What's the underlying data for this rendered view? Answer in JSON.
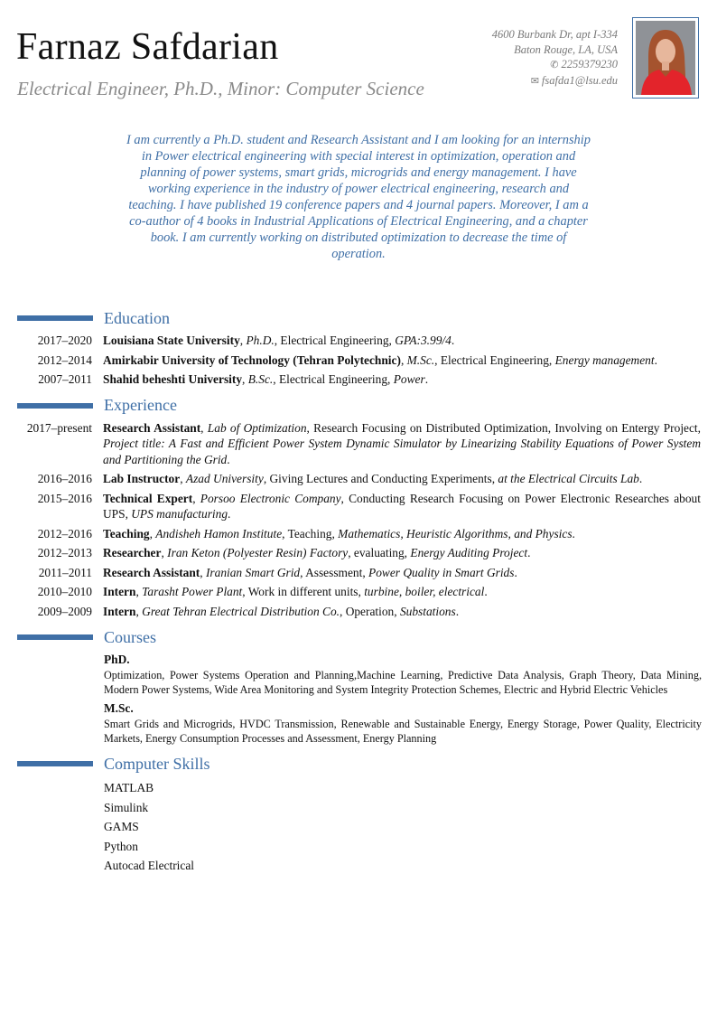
{
  "header": {
    "name": "Farnaz Safdarian",
    "subtitle": "Electrical Engineer, Ph.D., Minor: Computer Science",
    "address_line1": "4600 Burbank Dr, apt I-334",
    "address_line2": "Baton Rouge, LA, USA",
    "phone": "2259379230",
    "phone_icon": "mobile-phone-icon",
    "email": "fsafda1@lsu.edu",
    "email_icon": "envelope-icon"
  },
  "colors": {
    "accent": "#3f6fa6",
    "muted": "#8a8a8a"
  },
  "summary": "I am currently a Ph.D. student and Research Assistant and I am looking for an internship in Power electrical engineering with special interest in optimization, operation and planning of power systems, smart grids, microgrids and energy management. I have working experience in the industry of power electrical engineering, research and teaching. I have published 19 conference papers and 4 journal papers. Moreover, I am a co-author of 4 books in Industrial Applications of Electrical Engineering, and a chapter book. I am currently working on distributed optimization to decrease the time of operation.",
  "education": {
    "title": "Education",
    "entries": [
      {
        "date": "2017–2020",
        "parts": [
          {
            "t": "Louisiana State University",
            "s": "b"
          },
          {
            "t": ", ",
            "s": ""
          },
          {
            "t": "Ph.D.",
            "s": "i"
          },
          {
            "t": ", Electrical Engineering, ",
            "s": ""
          },
          {
            "t": "GPA:3.99/4",
            "s": "i"
          },
          {
            "t": ".",
            "s": ""
          }
        ]
      },
      {
        "date": "2012–2014",
        "parts": [
          {
            "t": "Amirkabir University of Technology (Tehran Polytechnic)",
            "s": "b"
          },
          {
            "t": ", ",
            "s": ""
          },
          {
            "t": "M.Sc.",
            "s": "i"
          },
          {
            "t": ", Electrical Engineering, ",
            "s": ""
          },
          {
            "t": "Energy management",
            "s": "i"
          },
          {
            "t": ".",
            "s": ""
          }
        ]
      },
      {
        "date": "2007–2011",
        "parts": [
          {
            "t": "Shahid beheshti University",
            "s": "b"
          },
          {
            "t": ", ",
            "s": ""
          },
          {
            "t": "B.Sc.",
            "s": "i"
          },
          {
            "t": ", Electrical Engineering, ",
            "s": ""
          },
          {
            "t": "Power",
            "s": "i"
          },
          {
            "t": ".",
            "s": ""
          }
        ]
      }
    ]
  },
  "experience": {
    "title": "Experience",
    "entries": [
      {
        "date": "2017–present",
        "parts": [
          {
            "t": "Research Assistant",
            "s": "b"
          },
          {
            "t": ", ",
            "s": ""
          },
          {
            "t": "Lab of Optimization",
            "s": "i"
          },
          {
            "t": ", Research Focusing on Distributed Optimization, Involving on Entergy Project, ",
            "s": ""
          },
          {
            "t": "Project title: A Fast and Efficient Power System Dynamic Simulator by Linearizing Stability Equations of Power System and Partitioning the Grid",
            "s": "i"
          },
          {
            "t": ".",
            "s": ""
          }
        ]
      },
      {
        "date": "2016–2016",
        "parts": [
          {
            "t": "Lab Instructor",
            "s": "b"
          },
          {
            "t": ", ",
            "s": ""
          },
          {
            "t": "Azad University",
            "s": "i"
          },
          {
            "t": ", Giving Lectures and Conducting Experiments, ",
            "s": ""
          },
          {
            "t": "at the Electrical Circuits Lab",
            "s": "i"
          },
          {
            "t": ".",
            "s": ""
          }
        ]
      },
      {
        "date": "2015–2016",
        "parts": [
          {
            "t": "Technical Expert",
            "s": "b"
          },
          {
            "t": ", ",
            "s": ""
          },
          {
            "t": "Porsoo Electronic Company",
            "s": "i"
          },
          {
            "t": ", Conducting Research Focusing on Power Electronic Researches about UPS, ",
            "s": ""
          },
          {
            "t": "UPS manufacturing",
            "s": "i"
          },
          {
            "t": ".",
            "s": ""
          }
        ]
      },
      {
        "date": "2012–2016",
        "parts": [
          {
            "t": "Teaching",
            "s": "b"
          },
          {
            "t": ", ",
            "s": ""
          },
          {
            "t": "Andisheh Hamon Institute",
            "s": "i"
          },
          {
            "t": ", Teaching,  ",
            "s": ""
          },
          {
            "t": "Mathematics, Heuristic Algorithms, and Physics",
            "s": "i"
          },
          {
            "t": ".",
            "s": ""
          }
        ]
      },
      {
        "date": "2012–2013",
        "parts": [
          {
            "t": "Researcher",
            "s": "b"
          },
          {
            "t": ", ",
            "s": ""
          },
          {
            "t": "Iran Keton (Polyester Resin) Factory",
            "s": "i"
          },
          {
            "t": ", evaluating, ",
            "s": ""
          },
          {
            "t": "Energy Auditing Project",
            "s": "i"
          },
          {
            "t": ".",
            "s": ""
          }
        ]
      },
      {
        "date": "2011–2011",
        "parts": [
          {
            "t": "Research Assistant",
            "s": "b"
          },
          {
            "t": ", ",
            "s": ""
          },
          {
            "t": "Iranian Smart Grid",
            "s": "i"
          },
          {
            "t": ", Assessment, ",
            "s": ""
          },
          {
            "t": "Power Quality in Smart Grids",
            "s": "i"
          },
          {
            "t": ".",
            "s": ""
          }
        ]
      },
      {
        "date": "2010–2010",
        "parts": [
          {
            "t": "Intern",
            "s": "b"
          },
          {
            "t": ", ",
            "s": ""
          },
          {
            "t": "Tarasht Power Plant",
            "s": "i"
          },
          {
            "t": ", Work in different units, ",
            "s": ""
          },
          {
            "t": "turbine, boiler, electrical",
            "s": "i"
          },
          {
            "t": ".",
            "s": ""
          }
        ]
      },
      {
        "date": "2009–2009",
        "parts": [
          {
            "t": "Intern",
            "s": "b"
          },
          {
            "t": ", ",
            "s": ""
          },
          {
            "t": "Great Tehran Electrical Distribution Co.",
            "s": "i"
          },
          {
            "t": ", Operation, ",
            "s": ""
          },
          {
            "t": "Substations",
            "s": "i"
          },
          {
            "t": ".",
            "s": ""
          }
        ]
      }
    ]
  },
  "courses": {
    "title": "Courses",
    "groups": [
      {
        "heading": "PhD.",
        "text": "Optimization, Power Systems Operation and Planning,Machine Learning, Predictive Data Analysis, Graph Theory, Data Mining, Modern Power Systems, Wide Area Monitoring and System Integrity Protection Schemes, Electric and Hybrid Electric Vehicles"
      },
      {
        "heading": "M.Sc.",
        "text": "Smart Grids and Microgrids, HVDC Transmission, Renewable and Sustainable Energy, Energy Storage, Power Quality, Electricity Markets, Energy Consumption Processes and Assessment, Energy Planning"
      }
    ]
  },
  "skills": {
    "title": "Computer Skills",
    "items": [
      "MATLAB",
      "Simulink",
      "GAMS",
      "Python",
      "Autocad Electrical"
    ]
  }
}
